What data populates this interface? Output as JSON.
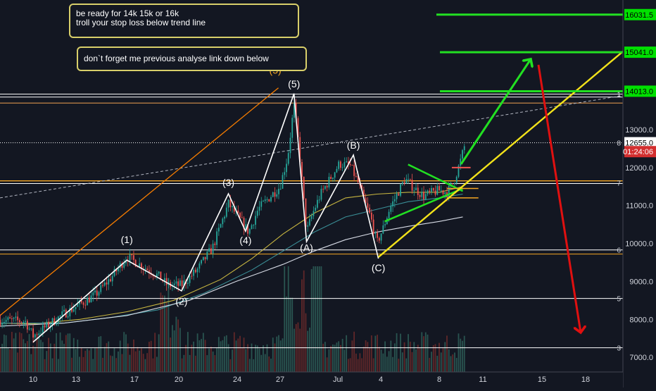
{
  "chart_data": {
    "type": "candlestick",
    "price_axis": {
      "ticks": [
        "13000.0",
        "12000.0",
        "11000.0",
        "10000.0",
        "9000.0",
        "8000.0",
        "7000.0"
      ],
      "range": [
        6700,
        16300
      ]
    },
    "date_axis": {
      "ticks": [
        "10",
        "13",
        "17",
        "20",
        "24",
        "27",
        "Jul",
        "4",
        "8",
        "11",
        "15",
        "18"
      ]
    },
    "price_tags": [
      {
        "text": "16031.5",
        "price": 16031.5,
        "bg": "#00e000",
        "fg": "#000000"
      },
      {
        "text": "15041.0",
        "price": 15041.0,
        "bg": "#00e000",
        "fg": "#000000"
      },
      {
        "text": "14013.0",
        "price": 14013.0,
        "bg": "#00e000",
        "fg": "#000000"
      },
      {
        "text": "12655.0",
        "price": 12655.0,
        "bg": "#ffffff",
        "fg": "#000000"
      },
      {
        "text": "01:24:06",
        "price": 12420,
        "bg": "#d32f2f",
        "fg": "#ffffff"
      }
    ],
    "level_labels": [
      {
        "text": "8",
        "price": 12655
      },
      {
        "text": "7",
        "price": 11600
      },
      {
        "text": "6",
        "price": 9830
      },
      {
        "text": "5",
        "price": 8550
      },
      {
        "text": "3",
        "price": 7250
      },
      {
        "text": "1",
        "price": 13935
      }
    ],
    "targets": [
      16031.5,
      15041.0,
      14013.0
    ],
    "wave_labels": [
      {
        "text": "(1)",
        "day": 6,
        "price": 9860,
        "pos": "above"
      },
      {
        "text": "(2)",
        "day": 9.5,
        "price": 8720,
        "pos": "below"
      },
      {
        "text": "(3)",
        "day": 12.5,
        "price": 11370,
        "pos": "above"
      },
      {
        "text": "(4)",
        "day": 13.6,
        "price": 10330,
        "pos": "below"
      },
      {
        "text": "(5)",
        "day": 16.7,
        "price": 13970,
        "pos": "above"
      },
      {
        "text": "(5)",
        "day": 15.5,
        "price": 14330,
        "pos": "above",
        "color": "#f5a623"
      },
      {
        "text": "(A)",
        "day": 17.5,
        "price": 10130,
        "pos": "below"
      },
      {
        "text": "(B)",
        "day": 20.5,
        "price": 12350,
        "pos": "above"
      },
      {
        "text": "(C)",
        "day": 22.1,
        "price": 9600,
        "pos": "below"
      }
    ],
    "annotations": [
      {
        "lines": [
          "be ready for 14k 15k or 16k",
          "troll your stop loss below trend line"
        ]
      },
      {
        "lines": [
          "don`t  forget me previous analyse link down below"
        ]
      }
    ]
  }
}
